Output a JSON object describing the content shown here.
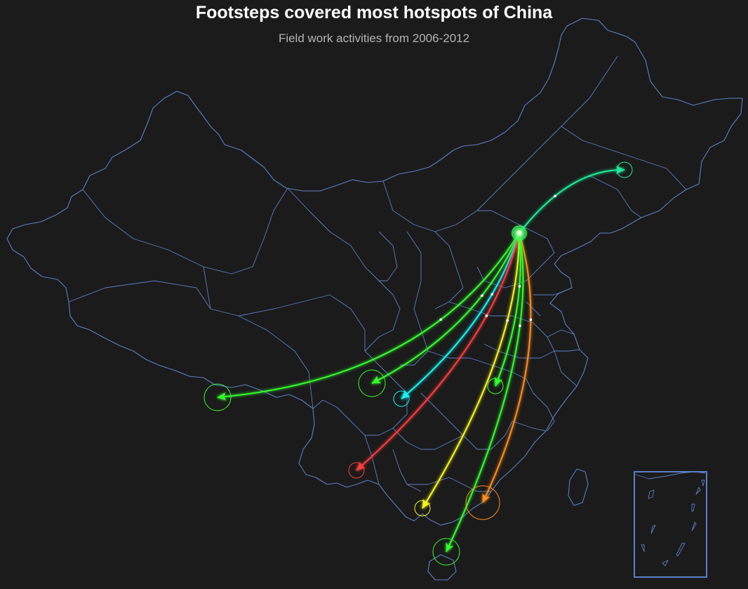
{
  "title": "Footsteps covered most hotspots of China",
  "subtitle": "Field work activities from 2006-2012",
  "colors": {
    "background": "#1b1b1b",
    "border": "#5b7fc4",
    "origin": "#3dff5c"
  },
  "routes": [
    {
      "id": "heilongjiang",
      "color": "#1eec9a",
      "weight": "small"
    },
    {
      "id": "tibet",
      "color": "#33ff2c",
      "weight": "medium"
    },
    {
      "id": "sichuan",
      "color": "#33ff2c",
      "weight": "medium"
    },
    {
      "id": "chongqing",
      "color": "#19f2f2",
      "weight": "small"
    },
    {
      "id": "yunnan",
      "color": "#ff3b3b",
      "weight": "small"
    },
    {
      "id": "guangxi",
      "color": "#f7f71e",
      "weight": "small"
    },
    {
      "id": "guangdong",
      "color": "#ff8c1a",
      "weight": "large"
    },
    {
      "id": "hainan",
      "color": "#33ff2c",
      "weight": "medium"
    },
    {
      "id": "jiangxi",
      "color": "#33ff2c",
      "weight": "small"
    }
  ]
}
